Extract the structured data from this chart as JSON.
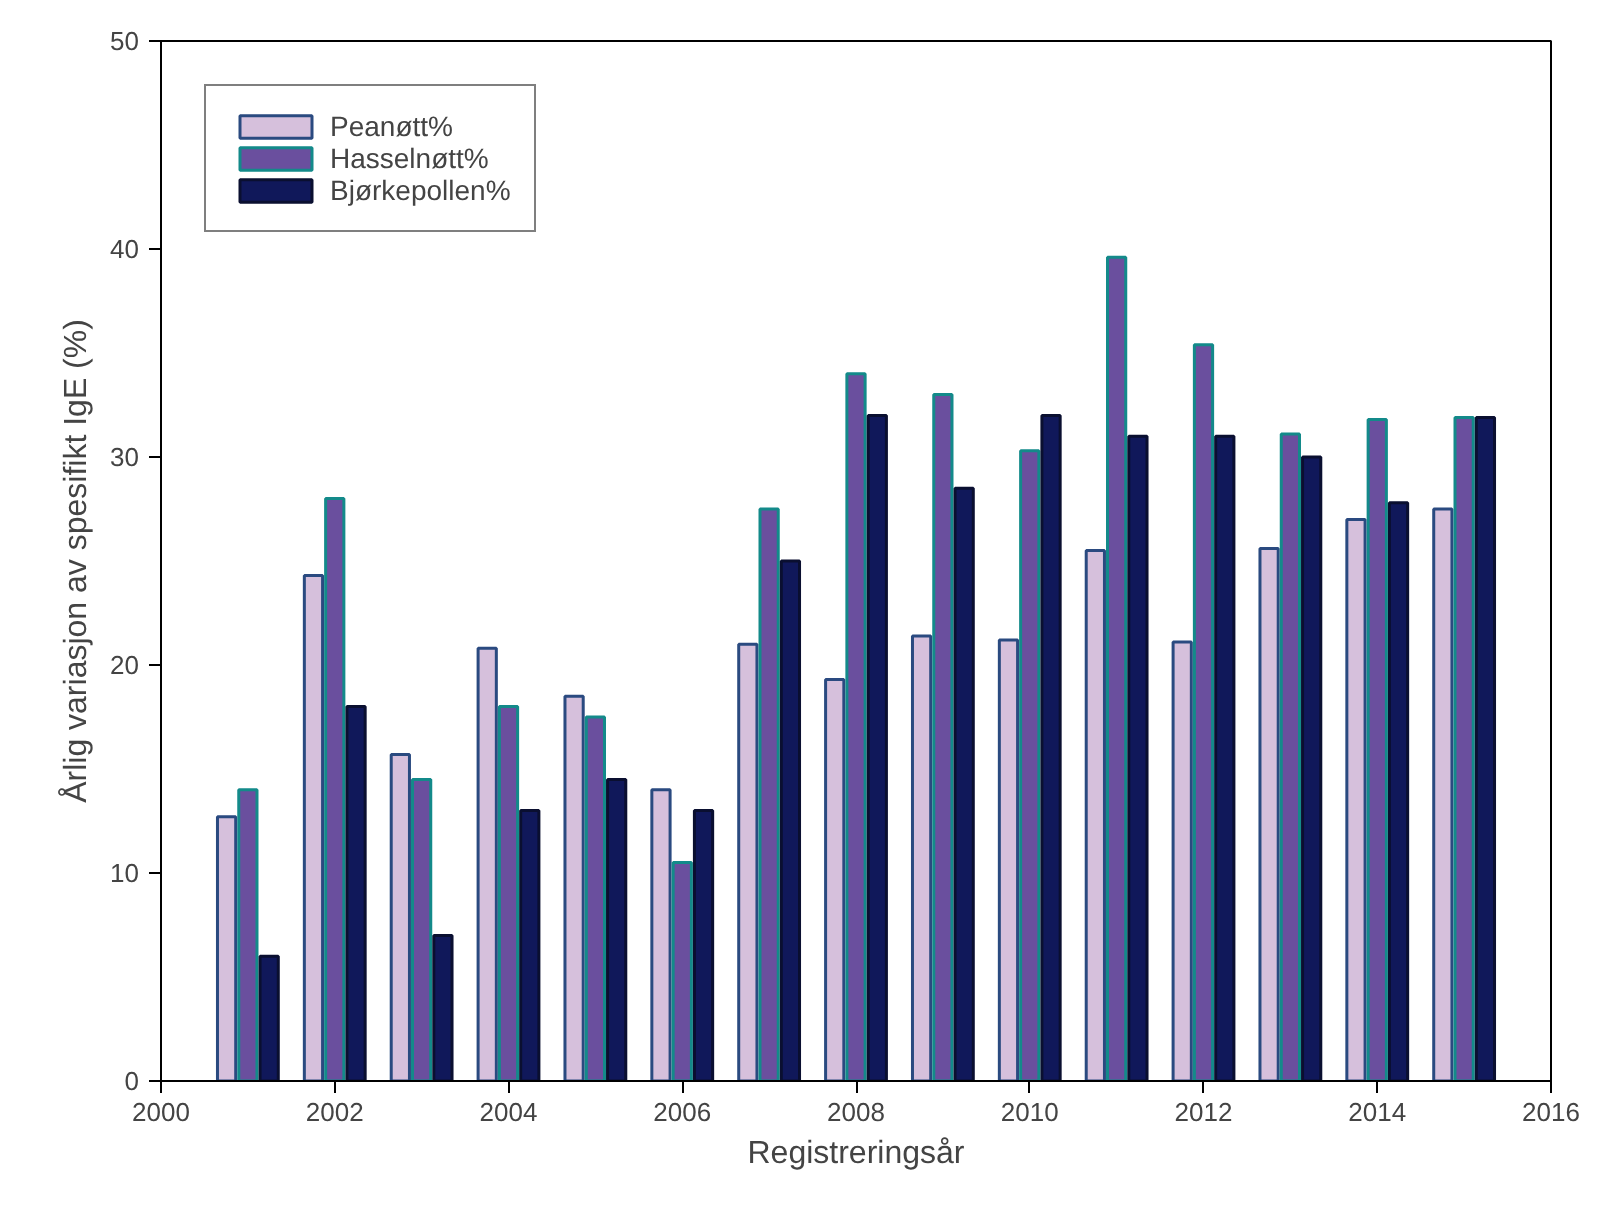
{
  "chart_data": {
    "type": "bar",
    "xlabel": "Registreringsår",
    "ylabel": "Årlig variasjon av spesifikt IgE (%)",
    "x": [
      2001,
      2002,
      2003,
      2004,
      2005,
      2006,
      2007,
      2008,
      2009,
      2010,
      2011,
      2012,
      2013,
      2014,
      2015
    ],
    "series": [
      {
        "name": "Peanøtt%",
        "color": "#d6c0dc",
        "values": [
          12.7,
          24.3,
          15.7,
          20.8,
          18.5,
          14,
          21,
          19.3,
          21.4,
          21.2,
          25.5,
          21.1,
          25.6,
          27,
          27.5
        ]
      },
      {
        "name": "Hasselnøtt%",
        "color": "#6a4f9e",
        "values": [
          14,
          28,
          14.5,
          18,
          17.5,
          10.5,
          27.5,
          34,
          33,
          30.3,
          39.6,
          35.4,
          31.1,
          31.8,
          31.9
        ]
      },
      {
        "name": "Bjørkepollen%",
        "color": "#10185a",
        "values": [
          6,
          18,
          7,
          13,
          14.5,
          13,
          25,
          32,
          28.5,
          32,
          31,
          31,
          30,
          27.8,
          31.9
        ]
      }
    ],
    "xlim": [
      2000,
      2016
    ],
    "xticks": [
      2000,
      2002,
      2004,
      2006,
      2008,
      2010,
      2012,
      2014,
      2016
    ],
    "ylim": [
      0,
      50
    ],
    "yticks": [
      0,
      10,
      20,
      30,
      40,
      50
    ],
    "grid": false,
    "legend": "top left"
  }
}
